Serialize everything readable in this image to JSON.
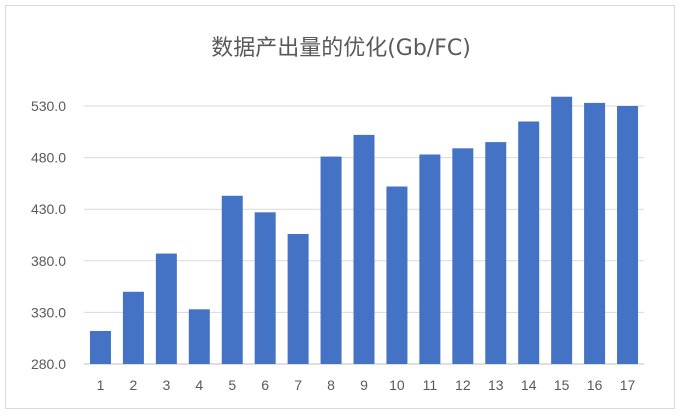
{
  "chart_data": {
    "type": "bar",
    "title": "数据产出量的优化(Gb/FC)",
    "xlabel": "",
    "ylabel": "",
    "categories": [
      "1",
      "2",
      "3",
      "4",
      "5",
      "6",
      "7",
      "8",
      "9",
      "10",
      "11",
      "12",
      "13",
      "14",
      "15",
      "16",
      "17"
    ],
    "values": [
      312,
      350,
      387,
      333,
      443,
      427,
      406,
      481,
      502,
      452,
      483,
      489,
      495,
      515,
      539,
      533,
      530
    ],
    "ylim": [
      280,
      540
    ],
    "yticks": [
      "280.0",
      "330.0",
      "380.0",
      "430.0",
      "480.0",
      "530.0"
    ],
    "grid": true,
    "bar_color": "#4472c4",
    "grid_color": "#d9d9d9",
    "legend": "none"
  }
}
